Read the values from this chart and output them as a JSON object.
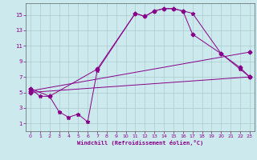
{
  "xlabel": "Windchill (Refroidissement éolien,°C)",
  "bg_color": "#cce9ee",
  "grid_color": "#aacccc",
  "line_color": "#880088",
  "xlim": [
    -0.5,
    23.5
  ],
  "ylim": [
    0.0,
    16.5
  ],
  "xticks": [
    0,
    1,
    2,
    3,
    4,
    5,
    6,
    7,
    8,
    9,
    10,
    11,
    12,
    13,
    14,
    15,
    16,
    17,
    18,
    19,
    20,
    21,
    22,
    23
  ],
  "yticks": [
    1,
    3,
    5,
    7,
    9,
    11,
    13,
    15
  ],
  "line1_x": [
    0,
    1,
    2,
    3,
    4,
    5,
    6,
    7,
    11,
    12,
    13,
    14,
    15,
    16,
    17,
    20,
    22,
    23
  ],
  "line1_y": [
    5.5,
    4.5,
    4.5,
    2.5,
    1.8,
    2.2,
    1.2,
    7.8,
    15.2,
    14.8,
    15.5,
    15.8,
    15.8,
    15.5,
    15.2,
    10.0,
    8.0,
    7.0
  ],
  "line2_x": [
    0,
    2,
    7,
    11,
    12,
    13,
    14,
    15,
    16,
    17,
    20,
    22,
    23
  ],
  "line2_y": [
    5.5,
    4.5,
    8.0,
    15.2,
    14.8,
    15.5,
    15.8,
    15.8,
    15.5,
    12.5,
    10.0,
    8.2,
    7.0
  ],
  "line3_x": [
    0,
    23
  ],
  "line3_y": [
    5.2,
    10.2
  ],
  "line4_x": [
    0,
    23
  ],
  "line4_y": [
    5.0,
    7.0
  ]
}
